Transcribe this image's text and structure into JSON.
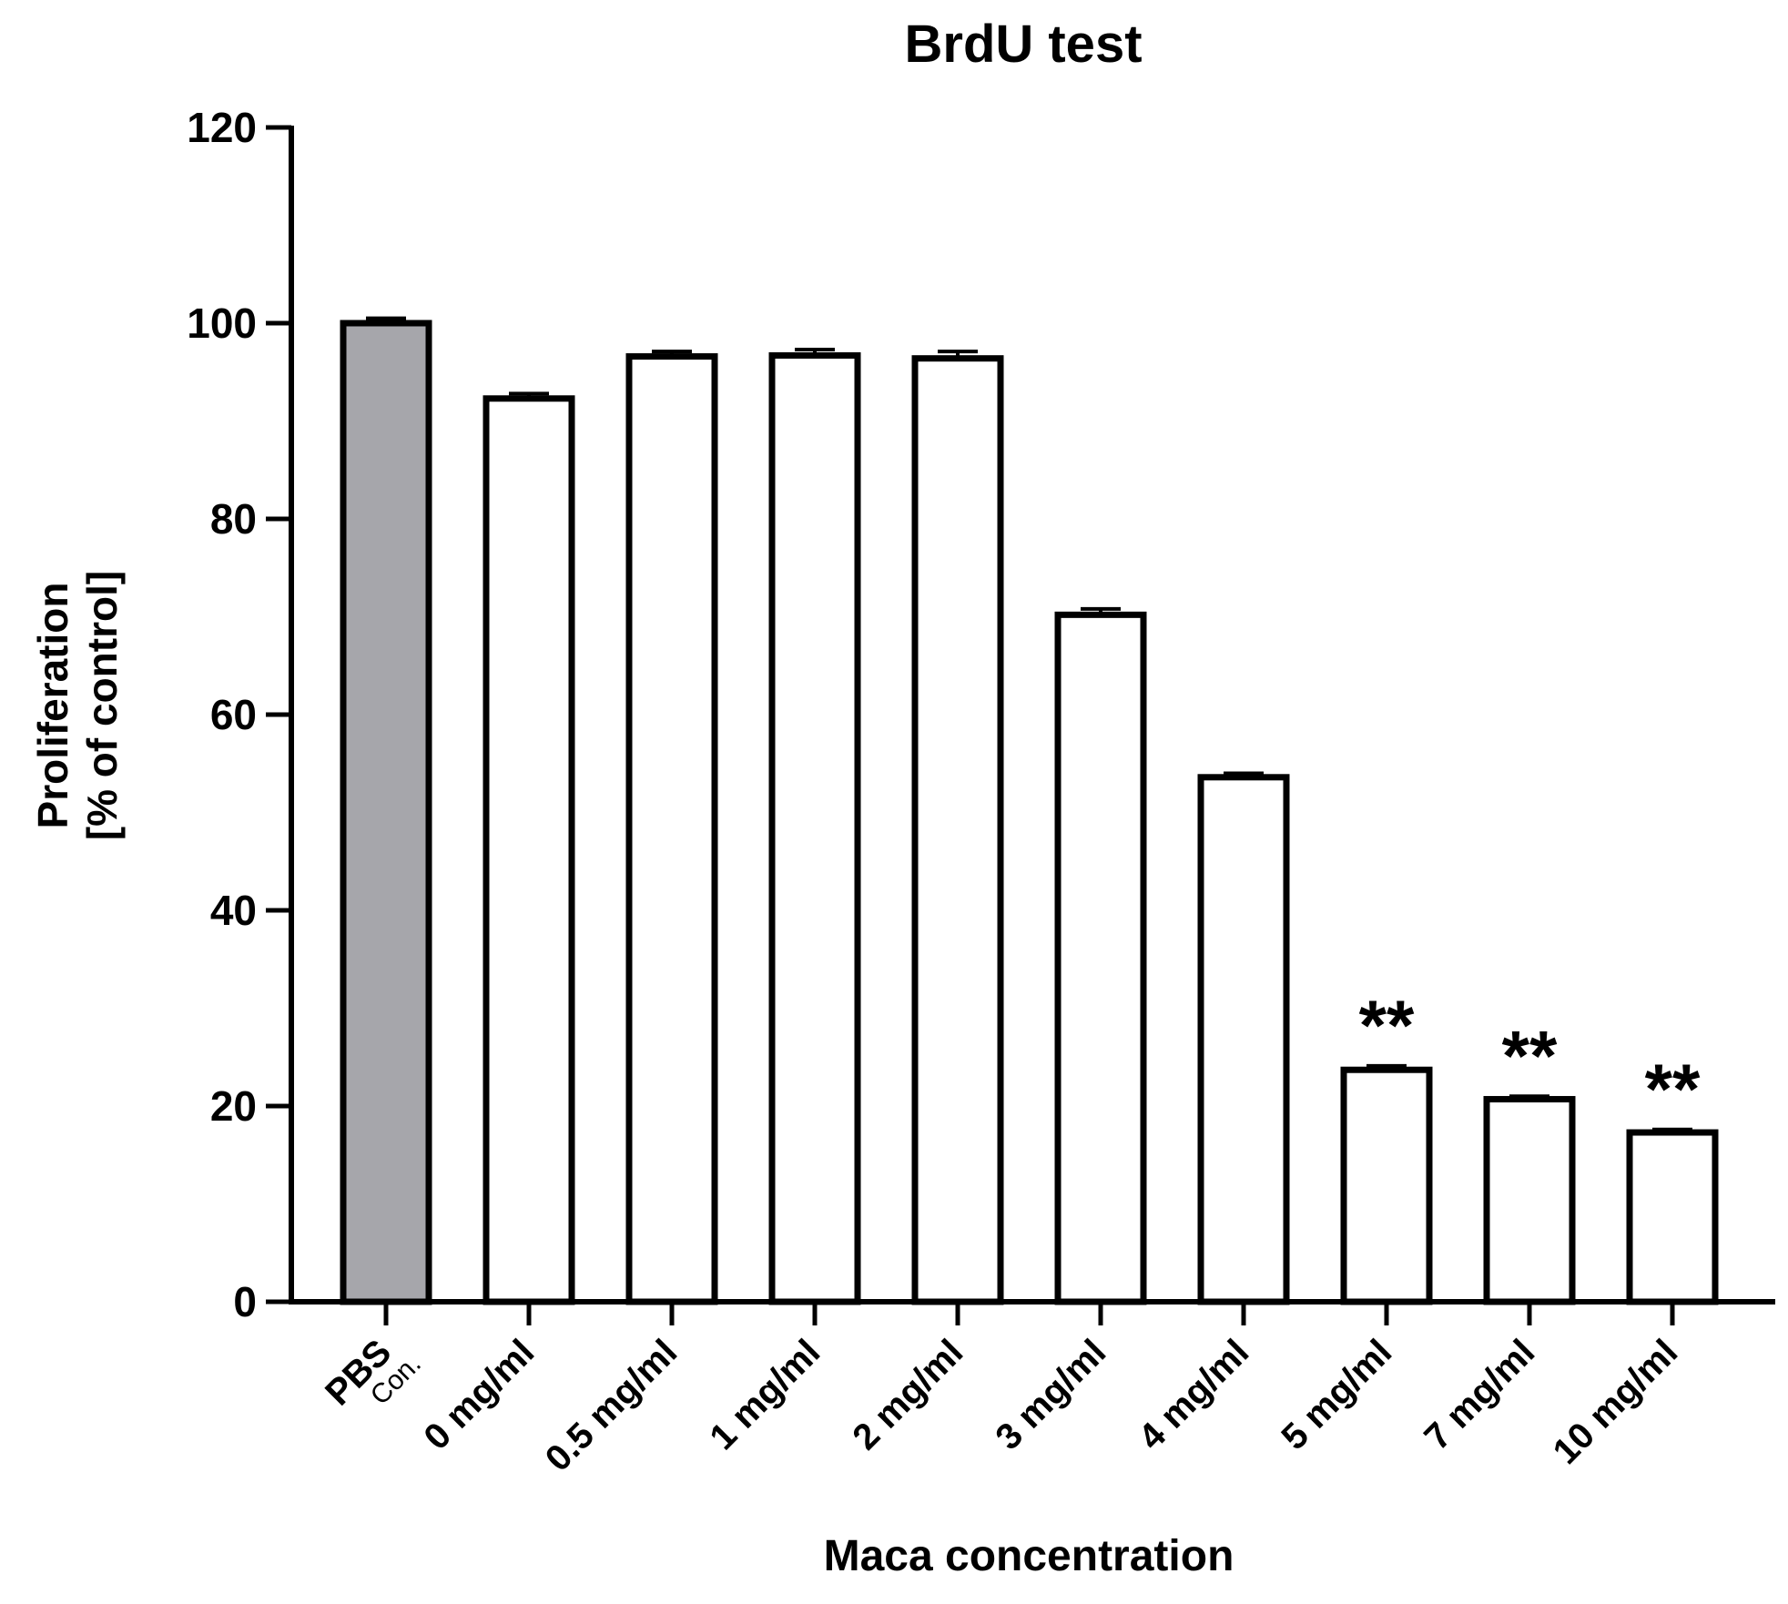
{
  "chart_data": {
    "type": "bar",
    "title": "BrdU test",
    "xlabel": "Maca concentration",
    "ylabel_line1": "Proliferation",
    "ylabel_line2": "[% of control]",
    "ylim": [
      0,
      120
    ],
    "yticks": [
      0,
      20,
      40,
      60,
      80,
      100,
      120
    ],
    "grid": false,
    "legend": "none",
    "categories": [
      {
        "label": "PBS",
        "sublabel": "Con."
      },
      {
        "label": "0 mg/ml",
        "sublabel": ""
      },
      {
        "label": "0.5 mg/ml",
        "sublabel": ""
      },
      {
        "label": "1 mg/ml",
        "sublabel": ""
      },
      {
        "label": "2 mg/ml",
        "sublabel": ""
      },
      {
        "label": "3 mg/ml",
        "sublabel": ""
      },
      {
        "label": "4 mg/ml",
        "sublabel": ""
      },
      {
        "label": "5 mg/ml",
        "sublabel": ""
      },
      {
        "label": "7 mg/ml",
        "sublabel": ""
      },
      {
        "label": "10 mg/ml",
        "sublabel": ""
      }
    ],
    "values": [
      100,
      92.3,
      96.6,
      96.7,
      96.4,
      70.2,
      53.6,
      23.7,
      20.7,
      17.3
    ],
    "errors": [
      0.5,
      0.5,
      0.5,
      0.6,
      0.7,
      0.6,
      0.4,
      0.4,
      0.3,
      0.3
    ],
    "annotations": [
      "",
      "",
      "",
      "",
      "",
      "",
      "",
      "**",
      "**",
      "**"
    ],
    "colors": {
      "control_fill": "#a6a6ab",
      "bar_fill": "#ffffff",
      "stroke": "#000000"
    }
  }
}
